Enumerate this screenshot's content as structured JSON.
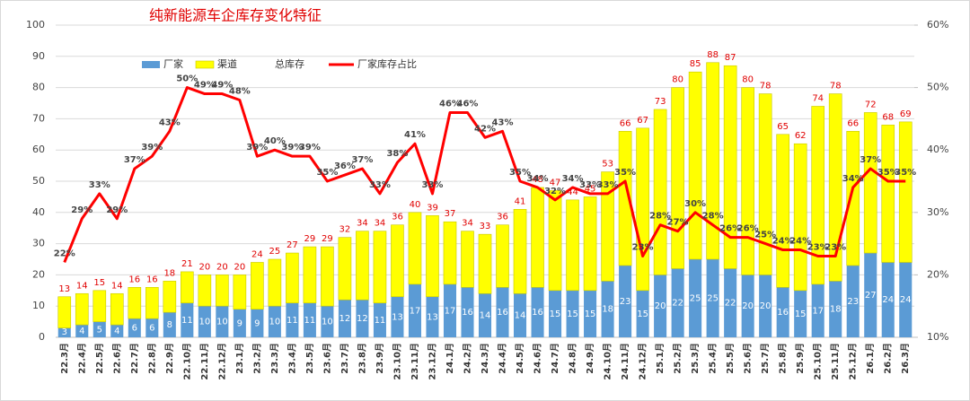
{
  "chart_data": {
    "type": "bar",
    "title": "纯新能源车企库存变化特征",
    "categories": [
      "22.3月",
      "22.4月",
      "22.5月",
      "22.6月",
      "22.7月",
      "22.8月",
      "22.9月",
      "22.10月",
      "22.11月",
      "22.12月",
      "23.1月",
      "23.2月",
      "23.3月",
      "23.4月",
      "23.5月",
      "23.6月",
      "23.7月",
      "23.8月",
      "23.9月",
      "23.10月",
      "23.11月",
      "23.12月",
      "24.1月",
      "24.2月",
      "24.3月",
      "24.4月",
      "24.5月",
      "24.6月",
      "24.7月",
      "24.8月",
      "24.9月",
      "24.10月",
      "24.11月",
      "24.12月",
      "25.1月",
      "25.2月",
      "25.3月",
      "25.4月",
      "25.5月",
      "25.6月",
      "25.7月",
      "25.8月",
      "25.9月",
      "25.10月",
      "25.11月",
      "25.12月",
      "26.1月",
      "26.2月",
      "26.3月"
    ],
    "series": [
      {
        "name": "厂家",
        "kind": "bar",
        "color": "#5b9bd5",
        "values": [
          3,
          4,
          5,
          4,
          6,
          6,
          8,
          11,
          10,
          10,
          9,
          9,
          10,
          11,
          11,
          10,
          12,
          12,
          11,
          13,
          17,
          13,
          17,
          16,
          14,
          16,
          14,
          16,
          15,
          15,
          15,
          18,
          23,
          15,
          20,
          22,
          25,
          25,
          22,
          20,
          20,
          16,
          15,
          17,
          18,
          23,
          27,
          24,
          24
        ]
      },
      {
        "name": "渠道",
        "kind": "bar",
        "color": "#ffff00",
        "values": [
          10,
          10,
          10,
          10,
          10,
          10,
          10,
          10,
          10,
          10,
          11,
          15,
          15,
          16,
          18,
          19,
          20,
          22,
          23,
          23,
          23,
          26,
          20,
          18,
          19,
          20,
          27,
          32,
          32,
          29,
          30,
          35,
          43,
          52,
          53,
          58,
          60,
          63,
          65,
          60,
          58,
          49,
          47,
          57,
          60,
          43,
          45,
          44,
          45
        ]
      },
      {
        "name": "总库存",
        "kind": "label",
        "color": "#e00000",
        "values": [
          13,
          14,
          15,
          14,
          16,
          16,
          18,
          21,
          20,
          20,
          20,
          24,
          25,
          27,
          29,
          29,
          32,
          34,
          34,
          36,
          40,
          39,
          37,
          34,
          33,
          36,
          41,
          48,
          47,
          44,
          45,
          53,
          66,
          67,
          73,
          80,
          85,
          88,
          87,
          80,
          78,
          65,
          62,
          74,
          78,
          66,
          72,
          68,
          69
        ]
      },
      {
        "name": "厂家库存占比",
        "kind": "line",
        "axis": "y2",
        "color": "#ff0000",
        "values": [
          22,
          29,
          33,
          29,
          37,
          39,
          43,
          50,
          49,
          49,
          48,
          39,
          40,
          39,
          39,
          35,
          36,
          37,
          33,
          38,
          41,
          33,
          46,
          46,
          42,
          43,
          35,
          34,
          32,
          34,
          33,
          33,
          35,
          23,
          28,
          27,
          30,
          28,
          26,
          26,
          25,
          24,
          24,
          23,
          23,
          34,
          37,
          35,
          35
        ],
        "value_labels": [
          "22%",
          "29%",
          "33%",
          "29%",
          "37%",
          "39%",
          "43%",
          "50%",
          "49%",
          "49%",
          "48%",
          "39%",
          "40%",
          "39%",
          "39%",
          "35%",
          "36%",
          "37%",
          "33%",
          "38%",
          "41%",
          "33%",
          "46%",
          "46%",
          "42%",
          "43%",
          "35%",
          "34%",
          "32%",
          "34%",
          "33%",
          "33%",
          "35%",
          "23%",
          "28%",
          "27%",
          "30%",
          "28%",
          "26%",
          "26%",
          "25%",
          "24%",
          "24%",
          "23%",
          "23%",
          "34%",
          "37%",
          "35%",
          "35%"
        ]
      }
    ],
    "ylim": [
      0,
      100
    ],
    "yticks": [
      0,
      10,
      20,
      30,
      40,
      50,
      60,
      70,
      80,
      90,
      100
    ],
    "y2lim": [
      10,
      60
    ],
    "y2ticks": [
      {
        "value": 10,
        "label": "10%"
      },
      {
        "value": 20,
        "label": "20%"
      },
      {
        "value": 30,
        "label": "30%"
      },
      {
        "value": 40,
        "label": "40%"
      },
      {
        "value": 50,
        "label": "50%"
      },
      {
        "value": 60,
        "label": "60%"
      }
    ],
    "grid": true,
    "legend": "top-left"
  }
}
